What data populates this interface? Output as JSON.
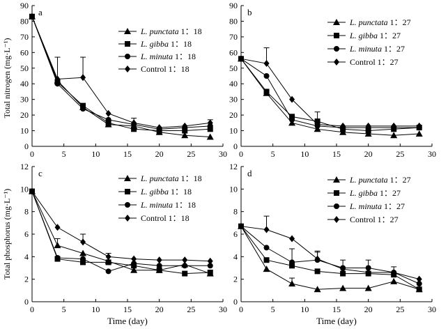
{
  "chart_data": [
    {
      "panel_label": "a",
      "type": "line",
      "ylabel": "Total nitrogen (mg·L⁻¹)",
      "xlabel": "",
      "xlim": [
        0,
        30
      ],
      "ylim": [
        0,
        90
      ],
      "xticks": [
        "0",
        "5",
        "10",
        "15",
        "20",
        "25",
        "30"
      ],
      "yticks": [
        "0",
        "10",
        "20",
        "30",
        "40",
        "50",
        "60",
        "70",
        "80",
        "90"
      ],
      "legend_position": "top-right",
      "x": [
        0,
        4,
        8,
        12,
        16,
        20,
        24,
        28
      ],
      "series": [
        {
          "name_italic": "L. punctata",
          "name_rest": " 1：18",
          "marker": "triangle",
          "values": [
            83,
            42,
            25,
            14,
            13,
            9,
            7,
            6
          ],
          "err": [
            0,
            0,
            0,
            0,
            0,
            0,
            0,
            0
          ]
        },
        {
          "name_italic": "L. gibba",
          "name_rest": " 1：18",
          "marker": "square",
          "values": [
            83,
            41,
            26,
            15,
            11,
            10,
            10,
            11
          ],
          "err": [
            0,
            0,
            0,
            0,
            0,
            0,
            0,
            0
          ]
        },
        {
          "name_italic": "L. minuta",
          "name_rest": " 1：18",
          "marker": "circle",
          "values": [
            83,
            40,
            24,
            17,
            14,
            11,
            12,
            13
          ],
          "err": [
            0,
            0,
            0,
            0,
            0,
            0,
            0,
            0
          ]
        },
        {
          "name_italic": "",
          "name_rest": "Control 1：18",
          "marker": "diamond",
          "values": [
            83,
            43,
            44,
            21,
            15,
            12,
            13,
            15
          ],
          "err": [
            0,
            14,
            13,
            0,
            3,
            0,
            0,
            2
          ]
        }
      ]
    },
    {
      "panel_label": "b",
      "type": "line",
      "ylabel": "",
      "xlabel": "",
      "xlim": [
        0,
        30
      ],
      "ylim": [
        0,
        90
      ],
      "xticks": [
        "0",
        "5",
        "10",
        "15",
        "20",
        "25",
        "30"
      ],
      "yticks": [
        "0",
        "10",
        "20",
        "30",
        "40",
        "50",
        "60",
        "70",
        "80",
        "90"
      ],
      "legend_position": "top-right",
      "x": [
        0,
        4,
        8,
        12,
        16,
        20,
        24,
        28
      ],
      "series": [
        {
          "name_italic": "L. punctata",
          "name_rest": " 1：27",
          "marker": "triangle",
          "values": [
            56,
            34,
            15,
            11,
            9,
            8,
            7,
            8
          ],
          "err": [
            0,
            0,
            0,
            0,
            0,
            0,
            0,
            0
          ]
        },
        {
          "name_italic": "L. gibba",
          "name_rest": " 1：27",
          "marker": "square",
          "values": [
            56,
            35,
            19,
            16,
            11,
            10,
            11,
            12
          ],
          "err": [
            0,
            0,
            0,
            6,
            0,
            0,
            0,
            0
          ]
        },
        {
          "name_italic": "L. minuta",
          "name_rest": " 1：27",
          "marker": "circle",
          "values": [
            56,
            45,
            17,
            13,
            12,
            12,
            12,
            12
          ],
          "err": [
            0,
            0,
            0,
            0,
            0,
            0,
            0,
            0
          ]
        },
        {
          "name_italic": "",
          "name_rest": "Control 1：27",
          "marker": "diamond",
          "values": [
            56,
            53,
            30,
            14,
            13,
            13,
            13,
            13
          ],
          "err": [
            0,
            10,
            0,
            0,
            0,
            0,
            0,
            0
          ]
        }
      ]
    },
    {
      "panel_label": "c",
      "type": "line",
      "ylabel": "Total phosphorus (mg·L⁻¹)",
      "xlabel": "Time (day)",
      "xlim": [
        0,
        30
      ],
      "ylim": [
        0,
        12
      ],
      "xticks": [
        "0",
        "5",
        "10",
        "15",
        "20",
        "25",
        "30"
      ],
      "yticks": [
        "0",
        "2",
        "4",
        "6",
        "8",
        "10",
        "12"
      ],
      "legend_position": "top-right",
      "x": [
        0,
        4,
        8,
        12,
        16,
        20,
        24,
        28
      ],
      "series": [
        {
          "name_italic": "L. punctata",
          "name_rest": " 1：18",
          "marker": "triangle",
          "values": [
            9.8,
            5.0,
            4.3,
            3.6,
            2.8,
            2.8,
            3.3,
            2.5
          ],
          "err": [
            0,
            0.6,
            0,
            0,
            0,
            0,
            0,
            0
          ]
        },
        {
          "name_italic": "L. gibba",
          "name_rest": " 1：18",
          "marker": "square",
          "values": [
            9.8,
            3.8,
            3.5,
            3.5,
            3.2,
            2.8,
            2.5,
            2.6
          ],
          "err": [
            0,
            0,
            0,
            0,
            0,
            0,
            0,
            0
          ]
        },
        {
          "name_italic": "L. minuta",
          "name_rest": " 1：18",
          "marker": "circle",
          "values": [
            9.8,
            3.9,
            3.8,
            2.7,
            3.4,
            3.2,
            3.2,
            3.2
          ],
          "err": [
            0,
            0,
            0,
            0,
            0,
            0,
            0,
            0
          ]
        },
        {
          "name_italic": "",
          "name_rest": "Control 1：18",
          "marker": "diamond",
          "values": [
            9.8,
            6.6,
            5.3,
            4.0,
            3.8,
            3.7,
            3.7,
            3.6
          ],
          "err": [
            0,
            0,
            0.7,
            0.3,
            0,
            0,
            0,
            0
          ]
        }
      ]
    },
    {
      "panel_label": "d",
      "type": "line",
      "ylabel": "",
      "xlabel": "Time (day)",
      "xlim": [
        0,
        30
      ],
      "ylim": [
        0,
        12
      ],
      "xticks": [
        "0",
        "5",
        "10",
        "15",
        "20",
        "25",
        "30"
      ],
      "yticks": [
        "0",
        "2",
        "4",
        "6",
        "8",
        "10",
        "12"
      ],
      "legend_position": "top-right",
      "x": [
        0,
        4,
        8,
        12,
        16,
        20,
        24,
        28
      ],
      "series": [
        {
          "name_italic": "L. punctata",
          "name_rest": " 1：27",
          "marker": "triangle",
          "values": [
            6.7,
            2.9,
            1.6,
            1.1,
            1.2,
            1.2,
            1.8,
            1.1
          ],
          "err": [
            0,
            0,
            0.5,
            0,
            0,
            0,
            0,
            0
          ]
        },
        {
          "name_italic": "L. gibba",
          "name_rest": " 1：27",
          "marker": "square",
          "values": [
            6.7,
            3.7,
            3.2,
            2.7,
            2.5,
            2.5,
            2.4,
            1.1
          ],
          "err": [
            0,
            0,
            0,
            0,
            0,
            0,
            0,
            0
          ]
        },
        {
          "name_italic": "L. minuta",
          "name_rest": " 1：27",
          "marker": "circle",
          "values": [
            6.7,
            4.8,
            3.5,
            3.7,
            3.0,
            3.0,
            2.6,
            1.6
          ],
          "err": [
            0,
            0,
            1.2,
            0.7,
            0.7,
            0.7,
            0,
            0
          ]
        },
        {
          "name_italic": "",
          "name_rest": "Control 1：27",
          "marker": "diamond",
          "values": [
            6.7,
            6.4,
            5.6,
            3.8,
            2.9,
            2.6,
            2.6,
            2.0
          ],
          "err": [
            0,
            1.2,
            0,
            0.7,
            0,
            0,
            0.5,
            0
          ]
        }
      ]
    }
  ]
}
